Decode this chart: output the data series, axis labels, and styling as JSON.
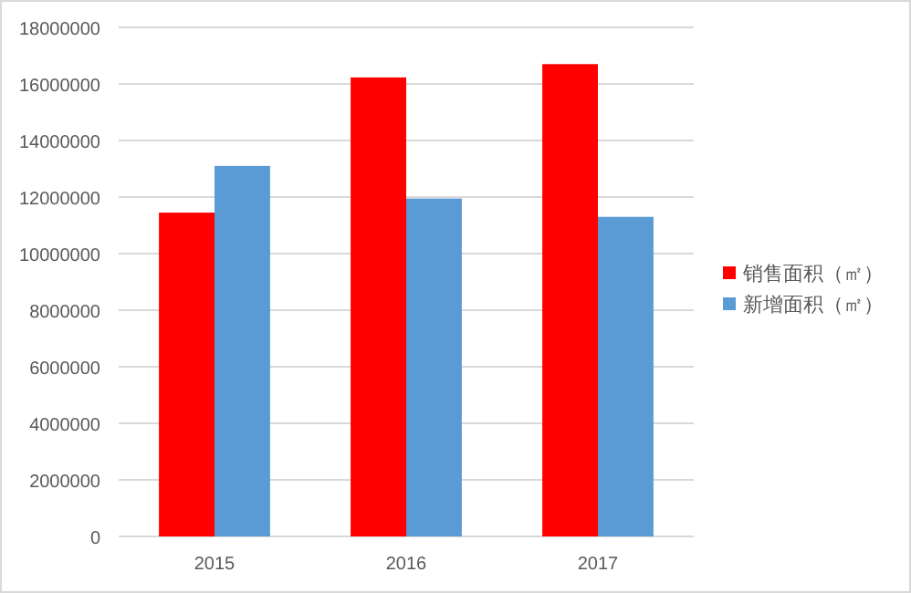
{
  "chart_data": {
    "type": "bar",
    "categories": [
      "2015",
      "2016",
      "2017"
    ],
    "series": [
      {
        "name": "销售面积（㎡）",
        "color": "#ff0000",
        "values": [
          11450000,
          16230000,
          16700000
        ]
      },
      {
        "name": "新增面积（㎡）",
        "color": "#5b9bd5",
        "values": [
          13100000,
          11950000,
          11300000
        ]
      }
    ],
    "ylim": [
      0,
      18000000
    ],
    "yticks": [
      0,
      2000000,
      4000000,
      6000000,
      8000000,
      10000000,
      12000000,
      14000000,
      16000000,
      18000000
    ],
    "grid": "y",
    "legend": "right"
  }
}
